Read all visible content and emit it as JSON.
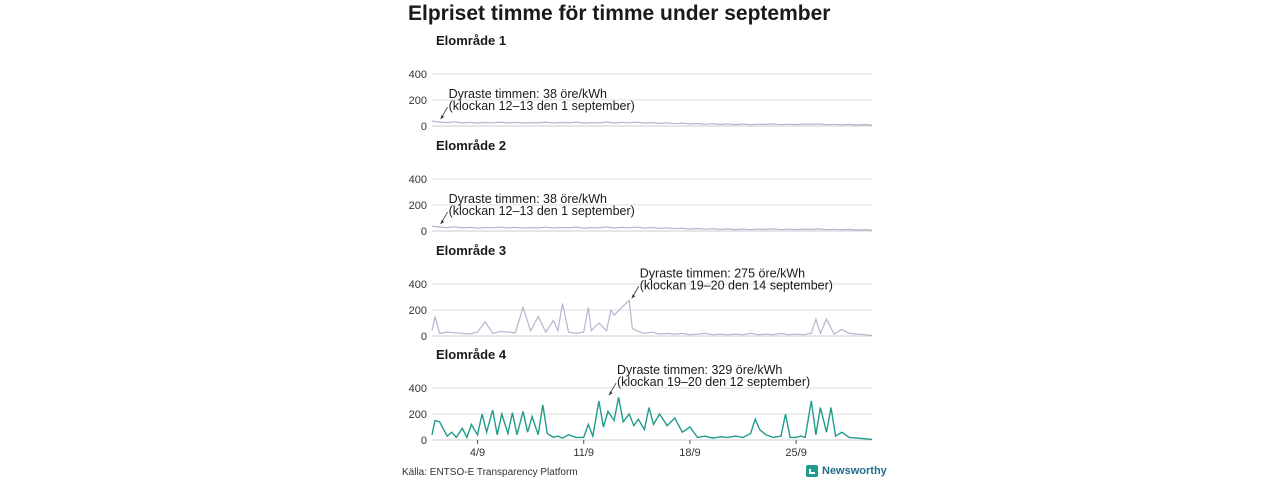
{
  "title": "Elpriset timme för timme under september",
  "source": "Källa: ENTSO-E Transparency Platform",
  "brand": {
    "name": "Newsworthy",
    "icon": "newsworthy-logo-icon"
  },
  "colors": {
    "muted_line": "#b7b5cf",
    "highlight_line": "#1f9c8c",
    "grid": "#dddddd"
  },
  "chart_data": {
    "type": "line",
    "x_unit": "day of September (hour resolution)",
    "xlim": [
      1,
      30
    ],
    "x_ticks": [
      {
        "x": 4,
        "label": "4/9"
      },
      {
        "x": 11,
        "label": "11/9"
      },
      {
        "x": 18,
        "label": "18/9"
      },
      {
        "x": 25,
        "label": "25/9"
      }
    ],
    "y_ticks": [
      0,
      200,
      400
    ],
    "ylim": [
      0,
      400
    ],
    "grid": true,
    "panels": [
      {
        "title": "Elområde 1",
        "highlight": false,
        "x": [
          1,
          1.5,
          2,
          2.5,
          3,
          3.5,
          4,
          4.5,
          5,
          5.5,
          6,
          6.5,
          7,
          7.5,
          8,
          8.5,
          9,
          9.5,
          10,
          10.5,
          11,
          11.5,
          12,
          12.5,
          13,
          13.5,
          14,
          14.5,
          15,
          15.5,
          16,
          16.5,
          17,
          17.5,
          18,
          18.5,
          19,
          19.5,
          20,
          20.5,
          21,
          21.5,
          22,
          22.5,
          23,
          23.5,
          24,
          24.5,
          25,
          25.5,
          26,
          26.5,
          27,
          27.5,
          28,
          28.5,
          29,
          29.5,
          30
        ],
        "values": [
          38,
          30,
          26,
          32,
          24,
          28,
          22,
          27,
          25,
          30,
          24,
          28,
          22,
          26,
          24,
          29,
          23,
          27,
          25,
          30,
          22,
          26,
          24,
          31,
          23,
          28,
          25,
          30,
          22,
          27,
          20,
          24,
          18,
          22,
          15,
          19,
          14,
          18,
          12,
          16,
          11,
          15,
          10,
          14,
          12,
          16,
          10,
          14,
          11,
          15,
          12,
          16,
          10,
          13,
          9,
          12,
          8,
          11,
          7
        ],
        "annotation": {
          "line1": "Dyraste timmen: 38 öre/kWh",
          "line2": "(klockan 12–13 den 1 september)",
          "x": 1.5,
          "value": 38
        }
      },
      {
        "title": "Elområde 2",
        "highlight": false,
        "x": [
          1,
          1.5,
          2,
          2.5,
          3,
          3.5,
          4,
          4.5,
          5,
          5.5,
          6,
          6.5,
          7,
          7.5,
          8,
          8.5,
          9,
          9.5,
          10,
          10.5,
          11,
          11.5,
          12,
          12.5,
          13,
          13.5,
          14,
          14.5,
          15,
          15.5,
          16,
          16.5,
          17,
          17.5,
          18,
          18.5,
          19,
          19.5,
          20,
          20.5,
          21,
          21.5,
          22,
          22.5,
          23,
          23.5,
          24,
          24.5,
          25,
          25.5,
          26,
          26.5,
          27,
          27.5,
          28,
          28.5,
          29,
          29.5,
          30
        ],
        "values": [
          38,
          30,
          26,
          32,
          24,
          28,
          22,
          27,
          25,
          30,
          24,
          28,
          22,
          26,
          24,
          29,
          23,
          27,
          25,
          30,
          22,
          26,
          24,
          31,
          23,
          28,
          25,
          30,
          22,
          27,
          20,
          24,
          18,
          22,
          15,
          19,
          14,
          18,
          12,
          16,
          11,
          15,
          10,
          14,
          12,
          16,
          10,
          14,
          11,
          15,
          12,
          16,
          10,
          13,
          9,
          12,
          8,
          11,
          7
        ],
        "annotation": {
          "line1": "Dyraste timmen: 38 öre/kWh",
          "line2": "(klockan 12–13 den 1 september)",
          "x": 1.5,
          "value": 38
        }
      },
      {
        "title": "Elområde 3",
        "highlight": false,
        "x": [
          1,
          1.2,
          1.5,
          2,
          2.5,
          3,
          3.5,
          4,
          4.5,
          5,
          5.5,
          6,
          6.5,
          7,
          7.5,
          8,
          8.5,
          9,
          9.3,
          9.6,
          10,
          10.5,
          11,
          11.3,
          11.5,
          12,
          12.5,
          12.8,
          13,
          13.5,
          14,
          14.2,
          14.5,
          15,
          15.5,
          16,
          16.5,
          17,
          17.5,
          18,
          18.5,
          19,
          19.5,
          20,
          20.5,
          21,
          21.5,
          22,
          22.5,
          23,
          23.5,
          24,
          24.5,
          25,
          25.5,
          26,
          26.3,
          26.6,
          27,
          27.5,
          28,
          28.5,
          29,
          29.5,
          30
        ],
        "values": [
          40,
          150,
          20,
          30,
          25,
          20,
          15,
          30,
          110,
          20,
          35,
          30,
          25,
          220,
          40,
          150,
          30,
          120,
          40,
          250,
          30,
          20,
          30,
          220,
          40,
          100,
          40,
          200,
          160,
          220,
          275,
          60,
          40,
          20,
          30,
          15,
          20,
          15,
          20,
          10,
          15,
          20,
          10,
          15,
          10,
          15,
          10,
          20,
          10,
          15,
          10,
          20,
          10,
          15,
          10,
          20,
          130,
          20,
          130,
          15,
          50,
          20,
          15,
          10,
          5
        ],
        "annotation": {
          "line1": "Dyraste timmen: 275 öre/kWh",
          "line2": "(klockan 19–20 den 14 september)",
          "x": 14.1,
          "value": 275
        }
      },
      {
        "title": "Elområde 4",
        "highlight": true,
        "x": [
          1,
          1.2,
          1.5,
          2,
          2.3,
          2.6,
          3,
          3.3,
          3.6,
          4,
          4.3,
          4.6,
          5,
          5.3,
          5.6,
          6,
          6.3,
          6.6,
          7,
          7.3,
          7.6,
          8,
          8.3,
          8.6,
          9,
          9.3,
          9.6,
          10,
          10.5,
          11,
          11.3,
          11.6,
          12,
          12.3,
          12.6,
          13,
          13.3,
          13.6,
          14,
          14.3,
          14.6,
          15,
          15.3,
          15.6,
          16,
          16.5,
          17,
          17.5,
          18,
          18.5,
          19,
          19.5,
          20,
          20.5,
          21,
          21.5,
          22,
          22.3,
          22.6,
          23,
          23.5,
          24,
          24.3,
          24.6,
          25,
          25.3,
          25.6,
          26,
          26.3,
          26.6,
          27,
          27.3,
          27.6,
          28,
          28.5,
          29,
          29.5,
          30
        ],
        "values": [
          40,
          150,
          140,
          30,
          60,
          20,
          90,
          20,
          120,
          40,
          200,
          60,
          230,
          40,
          200,
          50,
          210,
          40,
          220,
          60,
          180,
          40,
          270,
          50,
          20,
          30,
          15,
          40,
          20,
          20,
          120,
          30,
          300,
          100,
          220,
          150,
          329,
          140,
          200,
          110,
          160,
          80,
          250,
          120,
          200,
          110,
          170,
          60,
          100,
          20,
          30,
          15,
          25,
          20,
          30,
          20,
          50,
          160,
          80,
          40,
          20,
          30,
          200,
          20,
          20,
          30,
          20,
          300,
          40,
          250,
          60,
          250,
          30,
          60,
          20,
          15,
          10,
          5
        ],
        "annotation": {
          "line1": "Dyraste timmen: 329 öre/kWh",
          "line2": "(klockan 19–20 den 12 september)",
          "x": 12.6,
          "value": 329
        }
      }
    ]
  }
}
